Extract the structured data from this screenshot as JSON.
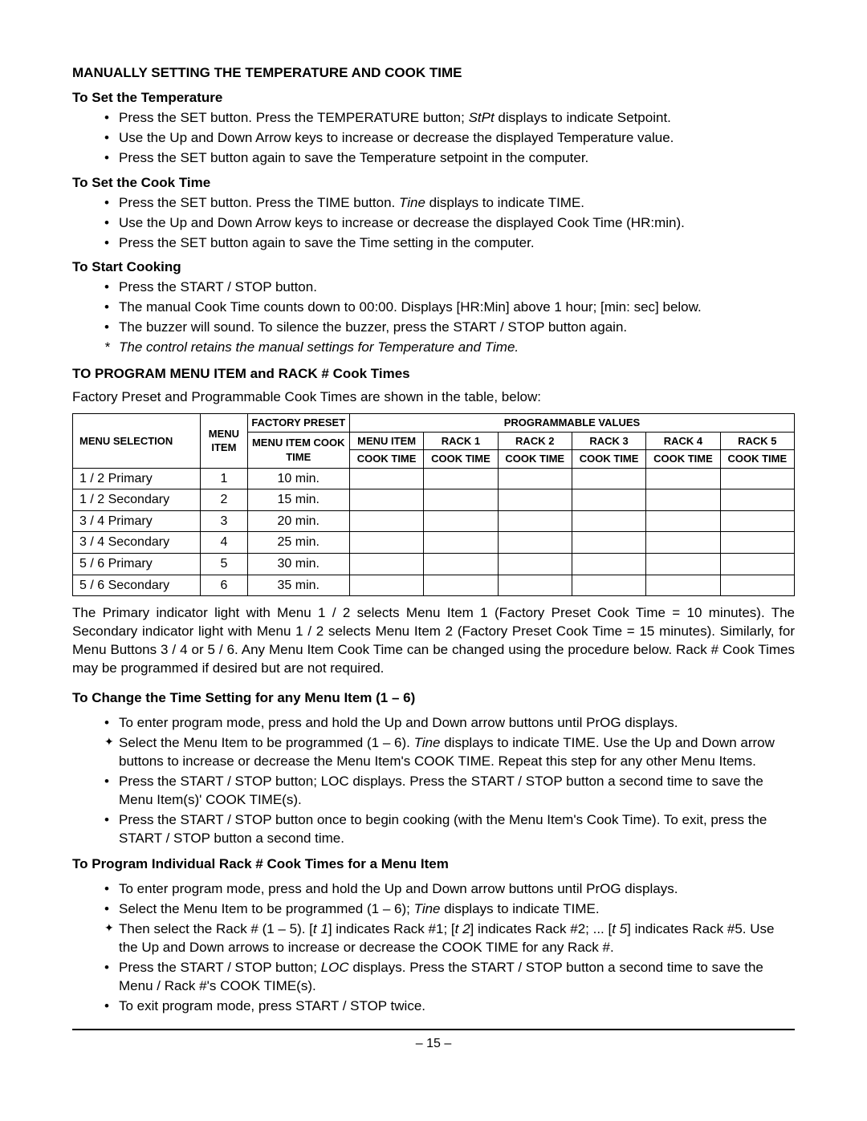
{
  "headings": {
    "main": "MANUALLY SETTING THE TEMPERATURE AND COOK TIME",
    "setTemp": "To Set the Temperature",
    "setCook": "To Set the Cook Time",
    "startCook": "To Start Cooking",
    "program": "TO PROGRAM MENU ITEM and RACK # Cook Times",
    "changeTime": "To Change the Time Setting for any Menu Item (1 – 6)",
    "programRack": "To Program Individual Rack # Cook Times for a Menu Item"
  },
  "setTempItems": {
    "a": "Press the SET button.  Press the TEMPERATURE button; ",
    "a_italic": "StPt",
    "a_end": " displays to indicate Setpoint.",
    "b": "Use the Up and Down Arrow keys to increase or decrease the displayed Temperature value.",
    "c": "Press the SET button again to save the Temperature setpoint in the computer."
  },
  "setCookItems": {
    "a": "Press the SET button.  Press the TIME button.  ",
    "a_italic": "Tine",
    "a_end": " displays to indicate TIME.",
    "b": "Use the Up and Down Arrow keys to increase or decrease the displayed Cook Time (HR:min).",
    "c": "Press the SET button again to save the Time setting in the computer."
  },
  "startCookItems": {
    "a": "Press the START / STOP button.",
    "b": "The manual Cook Time counts down to 00:00.  Displays [HR:Min] above 1 hour; [min: sec] below.",
    "c": "The buzzer will sound.  To silence the buzzer, press the START / STOP button again.",
    "d": "The control retains the manual settings for Temperature and Time."
  },
  "factoryIntro": "Factory Preset and Programmable Cook Times are shown in the table, below:",
  "table": {
    "headers": {
      "menuSelection": "MENU SELECTION",
      "menuItem": "MENU ITEM",
      "factoryPreset": "FACTORY PRESET",
      "menuItemCookTime": "MENU ITEM COOK TIME",
      "programmableValues": "PROGRAMMABLE VALUES",
      "menuItemCol": "MENU ITEM",
      "rack1": "RACK 1",
      "rack2": "RACK 2",
      "rack3": "RACK 3",
      "rack4": "RACK 4",
      "rack5": "RACK 5",
      "cookTime": "COOK TIME"
    },
    "rows": [
      {
        "sel": "1 / 2  Primary",
        "item": "1",
        "preset": "10 min."
      },
      {
        "sel": "1 / 2  Secondary",
        "item": "2",
        "preset": "15 min."
      },
      {
        "sel": "3 / 4  Primary",
        "item": "3",
        "preset": "20 min."
      },
      {
        "sel": "3 / 4  Secondary",
        "item": "4",
        "preset": "25 min."
      },
      {
        "sel": "5 / 6  Primary",
        "item": "5",
        "preset": "30 min."
      },
      {
        "sel": "5 / 6  Secondary",
        "item": "6",
        "preset": "35 min."
      }
    ]
  },
  "tableExplain": "The Primary indicator light with Menu 1 / 2 selects Menu Item 1 (Factory Preset Cook Time = 10 minutes).  The Secondary indicator light with Menu 1 / 2 selects Menu Item 2 (Factory Preset Cook Time = 15 minutes).  Similarly, for Menu Buttons 3 / 4 or 5 / 6.  Any Menu Item Cook Time can be changed using the procedure below.  Rack # Cook Times may be programmed if desired but are not required.",
  "changeTimeItems": {
    "a": "To enter program mode, press and hold the Up and Down arrow buttons until PrOG displays.",
    "b1": "Select the Menu Item to be programmed (1 – 6).  ",
    "b_italic": "Tine",
    "b2": " displays to indicate TIME. Use the Up and Down arrow buttons to increase or decrease the Menu Item's COOK TIME.  Repeat this step for any other Menu Items.",
    "c": "Press the START / STOP button; LOC displays.  Press the START / STOP button a second time to save the Menu Item(s)' COOK TIME(s).",
    "d": "Press the START / STOP button once to begin cooking (with the Menu Item's Cook Time).  To exit, press the START / STOP button a second time."
  },
  "programRackItems": {
    "a": "To enter program mode, press and hold the Up and Down arrow buttons until PrOG displays.",
    "b1": "Select the Menu Item to be programmed (1 – 6); ",
    "b_italic": "Tine",
    "b2": " displays to indicate TIME.",
    "c1": "Then select the Rack # (1 – 5). [",
    "c_i1": "t  1",
    "c2": "] indicates Rack #1; [",
    "c_i2": "t  2",
    "c3": "] indicates Rack #2;  ... [",
    "c_i3": "t  5",
    "c4": "] indicates Rack #5. Use the Up and Down arrows to increase or decrease the COOK TIME for any Rack #.",
    "d1": "Press the START / STOP button; ",
    "d_i": "LOC",
    "d2": " displays.  Press the START / STOP button a second time to save the Menu / Rack #'s COOK TIME(s).",
    "e": "To exit program mode, press START / STOP twice."
  },
  "pageNum": "– 15 –"
}
